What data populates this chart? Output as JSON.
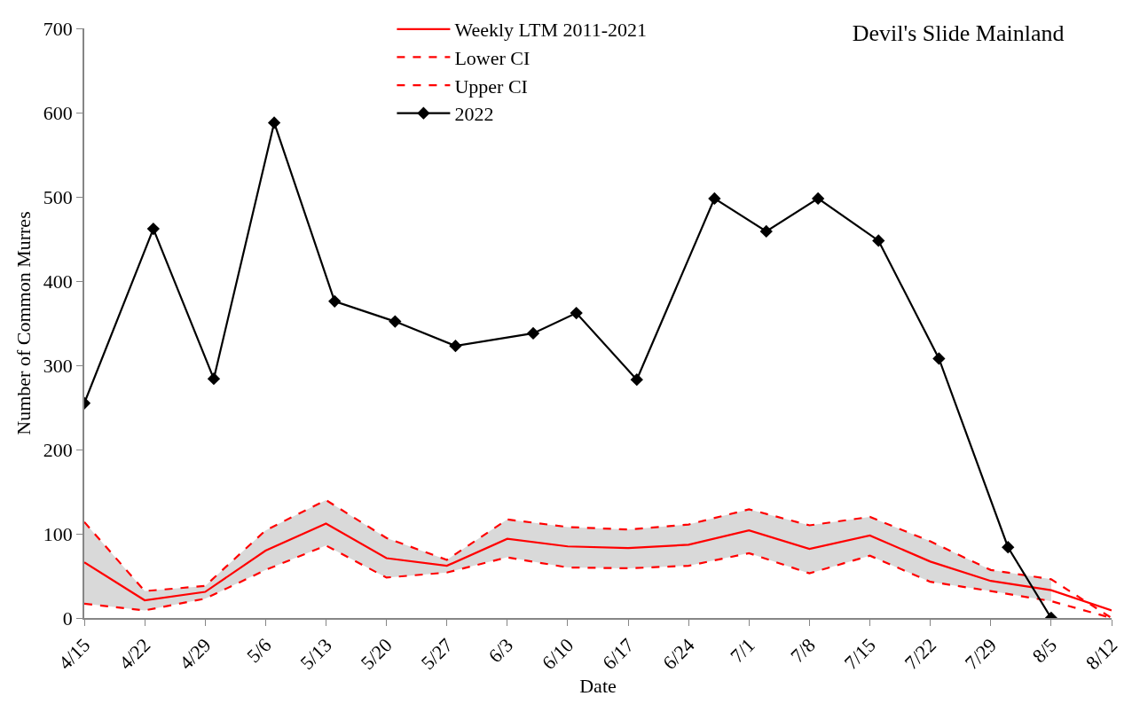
{
  "chart_data": {
    "type": "line",
    "title": "Devil's Slide Mainland",
    "xlabel": "Date",
    "ylabel": "Number of Common Murres",
    "x": [
      "--04-15",
      "--04-22",
      "--04-29",
      "--05-06",
      "--05-13",
      "--05-20",
      "--05-27",
      "--06-03",
      "--06-10",
      "--06-17",
      "--06-24",
      "--07-01",
      "--07-08",
      "--07-15",
      "--07-22",
      "--07-29",
      "--08-05",
      "--08-12"
    ],
    "series": [
      {
        "name": "Weekly LTM 2011-2021",
        "color": "#ff0000",
        "line_style": "solid",
        "marker": "none",
        "values": [
          66,
          21,
          31,
          80,
          112,
          71,
          62,
          94,
          85,
          83,
          87,
          104,
          82,
          98,
          67,
          44,
          33,
          9
        ],
        "lower": [
          17,
          9,
          23,
          57,
          86,
          48,
          54,
          72,
          60,
          59,
          62,
          77,
          53,
          74,
          43,
          32,
          20,
          null
        ],
        "upper": [
          114,
          32,
          38,
          104,
          140,
          95,
          69,
          117,
          108,
          105,
          111,
          129,
          110,
          120,
          91,
          57,
          46,
          null
        ]
      },
      {
        "name": "Lower CI",
        "color": "#ff0000",
        "line_style": "dashed",
        "marker": "none",
        "values": [
          17,
          9,
          23,
          57,
          86,
          48,
          54,
          72,
          60,
          59,
          62,
          77,
          53,
          74,
          43,
          32,
          20,
          0
        ]
      },
      {
        "name": "Upper CI",
        "color": "#ff0000",
        "line_style": "dashed",
        "marker": "none",
        "values": [
          114,
          32,
          38,
          104,
          140,
          95,
          69,
          117,
          108,
          105,
          111,
          129,
          110,
          120,
          91,
          57,
          46,
          0
        ]
      },
      {
        "name": "2022",
        "color": "#000000",
        "line_style": "solid",
        "marker": "diamond",
        "x": [
          "--04-15",
          "--04-23",
          "--04-30",
          "--05-07",
          "--05-14",
          "--05-21",
          "--05-28",
          "--06-06",
          "--06-11",
          "--06-18",
          "--06-27",
          "--07-03",
          "--07-09",
          "--07-16",
          "--07-23",
          "--07-31",
          "--08-05"
        ],
        "values": [
          255,
          462,
          284,
          588,
          376,
          352,
          323,
          338,
          362,
          283,
          498,
          459,
          498,
          448,
          308,
          84,
          0
        ]
      }
    ],
    "xlim": [
      "--04-15",
      "--08-12"
    ],
    "xticks": [
      {
        "value": "--04-15",
        "label": "4/15"
      },
      {
        "value": "--04-22",
        "label": "4/22"
      },
      {
        "value": "--04-29",
        "label": "4/29"
      },
      {
        "value": "--05-06",
        "label": "5/6"
      },
      {
        "value": "--05-13",
        "label": "5/13"
      },
      {
        "value": "--05-20",
        "label": "5/20"
      },
      {
        "value": "--05-27",
        "label": "5/27"
      },
      {
        "value": "--06-03",
        "label": "6/3"
      },
      {
        "value": "--06-10",
        "label": "6/10"
      },
      {
        "value": "--06-17",
        "label": "6/17"
      },
      {
        "value": "--06-24",
        "label": "6/24"
      },
      {
        "value": "--07-01",
        "label": "7/1"
      },
      {
        "value": "--07-08",
        "label": "7/8"
      },
      {
        "value": "--07-15",
        "label": "7/15"
      },
      {
        "value": "--07-22",
        "label": "7/22"
      },
      {
        "value": "--07-29",
        "label": "7/29"
      },
      {
        "value": "--08-05",
        "label": "8/5"
      },
      {
        "value": "--08-12",
        "label": "8/12"
      }
    ],
    "ylim": [
      0,
      700
    ],
    "yticks": [
      0,
      100,
      200,
      300,
      400,
      500,
      600,
      700
    ],
    "legend": "top"
  }
}
